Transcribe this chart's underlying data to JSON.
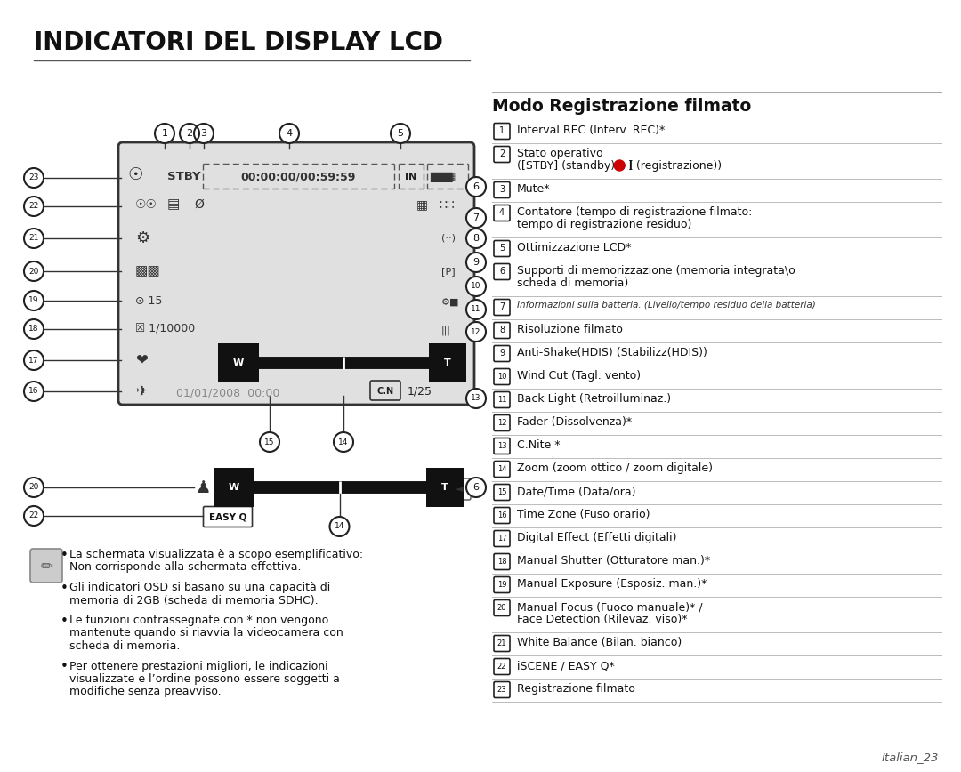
{
  "title": "INDICATORI DEL DISPLAY LCD",
  "section_title": "Modo Registrazione filmato",
  "bg_color": "#ffffff",
  "title_color": "#111111",
  "red_circle_color": "#cc0000",
  "right_entries": [
    [
      "1",
      "Interval REC (Interv. REC)*",
      false
    ],
    [
      "2",
      "Stato operativo\n([STBY] (standby) o [●] (registrazione))",
      false
    ],
    [
      "3",
      "Mute*",
      false
    ],
    [
      "4",
      "Contatore (tempo di registrazione filmato:\ntempo di registrazione residuo)",
      false
    ],
    [
      "5",
      "Ottimizzazione LCD*",
      false
    ],
    [
      "6",
      "Supporti di memorizzazione (memoria integrata\\o\nscheda di memoria)",
      false
    ],
    [
      "7",
      "Informazioni sulla batteria. (Livello/tempo residuo della batteria)",
      true
    ],
    [
      "8",
      "Risoluzione filmato",
      false
    ],
    [
      "9",
      "Anti-Shake(HDIS) (Stabilizz(HDIS))",
      false
    ],
    [
      "10",
      "Wind Cut (Tagl. vento)",
      false
    ],
    [
      "11",
      "Back Light (Retroilluminaz.)",
      false
    ],
    [
      "12",
      "Fader (Dissolvenza)*",
      false
    ],
    [
      "13",
      "C.Nite *",
      false
    ],
    [
      "14",
      "Zoom (zoom ottico / zoom digitale)",
      false
    ],
    [
      "15",
      "Date/Time (Data/ora)",
      false
    ],
    [
      "16",
      "Time Zone (Fuso orario)",
      false
    ],
    [
      "17",
      "Digital Effect (Effetti digitali)",
      false
    ],
    [
      "18",
      "Manual Shutter (Otturatore man.)*",
      false
    ],
    [
      "19",
      "Manual Exposure (Esposiz. man.)*",
      false
    ],
    [
      "20",
      "Manual Focus (Fuoco manuale)* /\nFace Detection (Rilevaz. viso)*",
      false
    ],
    [
      "21",
      "White Balance (Bilan. bianco)",
      false
    ],
    [
      "22",
      "iSCENE / EASY Q*",
      false
    ],
    [
      "23",
      "Registrazione filmato",
      false
    ]
  ],
  "bullet_notes": [
    "La schermata visualizzata è a scopo esemplificativo:\nNon corrisponde alla schermata effettiva.",
    "Gli indicatori OSD si basano su una capacità di\nmemoria di 2GB (scheda di memoria SDHC).",
    "Le funzioni contrassegnate con * non vengono\nmantenute quando si riavvia la videocamera con\nscheda di memoria.",
    "Per ottenere prestazioni migliori, le indicazioni\nvisualizzate e l’ordine possono essere soggetti a\nmodifiche senza preavviso."
  ],
  "footer_text": "Italian_23"
}
